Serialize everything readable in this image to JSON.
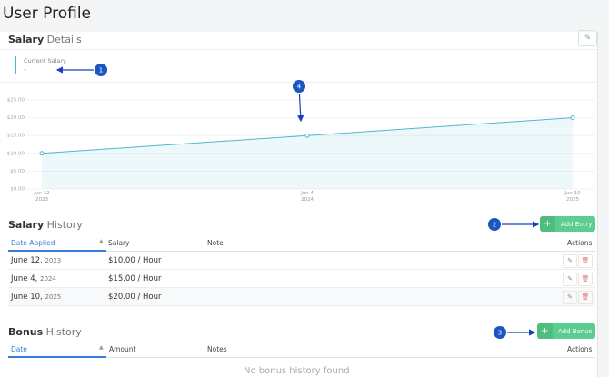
{
  "header": {
    "title": "User Profile"
  },
  "salary_details": {
    "title_bold": "Salary",
    "title_rest": "Details",
    "current_salary_label": "Current Salary",
    "current_salary_value": "-"
  },
  "chart_data": {
    "type": "line",
    "x": [
      "Jun 12\n2023",
      "Jun 4\n2024",
      "Jun 10\n2025"
    ],
    "series": [
      {
        "name": "Salary",
        "color": "#4fb8cc",
        "values": [
          10,
          15,
          20
        ]
      }
    ],
    "ylim": [
      0,
      25
    ],
    "yticks": [
      {
        "value": 0,
        "label": "$0.00"
      },
      {
        "value": 5,
        "label": "$5.00"
      },
      {
        "value": 10,
        "label": "$10.00"
      },
      {
        "value": 15,
        "label": "$15.00"
      },
      {
        "value": 20,
        "label": "$20.00"
      },
      {
        "value": 25,
        "label": "$25.00"
      }
    ],
    "grid": true,
    "area": true
  },
  "annotations": [
    "1",
    "2",
    "3",
    "4"
  ],
  "salary_history": {
    "title_bold": "Salary",
    "title_rest": "History",
    "button": "Add Entry",
    "columns": [
      "Date Applied",
      "Salary",
      "Note",
      "Actions"
    ],
    "rows": [
      {
        "date": "June 12,",
        "year": "2023",
        "salary": "$10.00 / Hour"
      },
      {
        "date": "June 4,",
        "year": "2024",
        "salary": "$15.00 / Hour"
      },
      {
        "date": "June 10,",
        "year": "2025",
        "salary": "$20.00 / Hour"
      }
    ]
  },
  "bonus_history": {
    "title_bold": "Bonus",
    "title_rest": "History",
    "button": "Add Bonus",
    "columns": [
      "Date",
      "Amount",
      "Notes",
      "Actions"
    ],
    "empty": "No bonus history found"
  }
}
